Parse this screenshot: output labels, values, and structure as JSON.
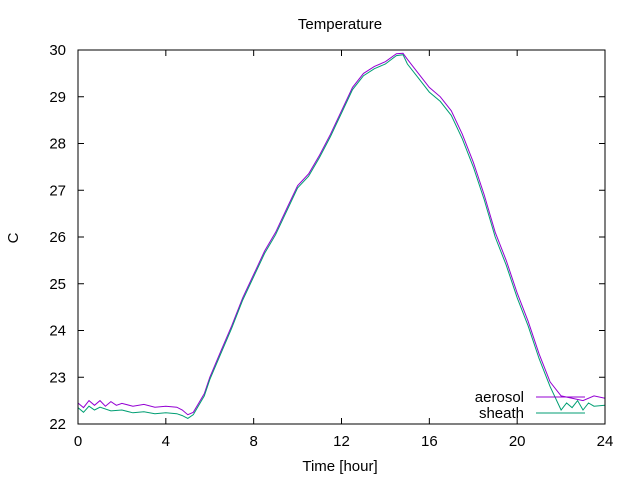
{
  "chart_data": {
    "type": "line",
    "title": "Temperature",
    "xlabel": "Time [hour]",
    "ylabel": "C",
    "xlim": [
      0,
      24
    ],
    "ylim": [
      22,
      30
    ],
    "xticks": [
      0,
      4,
      8,
      12,
      16,
      20,
      24
    ],
    "yticks": [
      22,
      23,
      24,
      25,
      26,
      27,
      28,
      29,
      30
    ],
    "grid": false,
    "legend_position": "bottom-right",
    "series": [
      {
        "name": "aerosol",
        "color": "#9400d3",
        "points": [
          [
            0,
            22.45
          ],
          [
            0.25,
            22.35
          ],
          [
            0.5,
            22.5
          ],
          [
            0.75,
            22.4
          ],
          [
            1,
            22.5
          ],
          [
            1.25,
            22.38
          ],
          [
            1.5,
            22.48
          ],
          [
            1.75,
            22.4
          ],
          [
            2,
            22.44
          ],
          [
            2.5,
            22.38
          ],
          [
            3,
            22.42
          ],
          [
            3.5,
            22.36
          ],
          [
            4,
            22.38
          ],
          [
            4.5,
            22.36
          ],
          [
            4.75,
            22.3
          ],
          [
            5,
            22.2
          ],
          [
            5.25,
            22.25
          ],
          [
            5.5,
            22.45
          ],
          [
            5.75,
            22.65
          ],
          [
            6,
            23.0
          ],
          [
            6.5,
            23.55
          ],
          [
            7,
            24.1
          ],
          [
            7.5,
            24.7
          ],
          [
            8,
            25.2
          ],
          [
            8.5,
            25.7
          ],
          [
            9,
            26.1
          ],
          [
            9.5,
            26.6
          ],
          [
            10,
            27.1
          ],
          [
            10.5,
            27.35
          ],
          [
            11,
            27.75
          ],
          [
            11.5,
            28.2
          ],
          [
            12,
            28.7
          ],
          [
            12.5,
            29.2
          ],
          [
            13,
            29.5
          ],
          [
            13.5,
            29.65
          ],
          [
            14,
            29.75
          ],
          [
            14.5,
            29.92
          ],
          [
            14.8,
            29.93
          ],
          [
            15,
            29.8
          ],
          [
            15.5,
            29.5
          ],
          [
            16,
            29.2
          ],
          [
            16.5,
            29.0
          ],
          [
            17,
            28.7
          ],
          [
            17.5,
            28.2
          ],
          [
            18,
            27.6
          ],
          [
            18.5,
            26.9
          ],
          [
            19,
            26.1
          ],
          [
            19.5,
            25.5
          ],
          [
            20,
            24.8
          ],
          [
            20.5,
            24.2
          ],
          [
            21,
            23.5
          ],
          [
            21.5,
            22.9
          ],
          [
            22,
            22.6
          ],
          [
            22.5,
            22.55
          ],
          [
            23,
            22.5
          ],
          [
            23.5,
            22.6
          ],
          [
            24,
            22.55
          ]
        ]
      },
      {
        "name": "sheath",
        "color": "#009e73",
        "points": [
          [
            0,
            22.35
          ],
          [
            0.25,
            22.25
          ],
          [
            0.5,
            22.38
          ],
          [
            0.75,
            22.3
          ],
          [
            1,
            22.36
          ],
          [
            1.5,
            22.28
          ],
          [
            2,
            22.3
          ],
          [
            2.5,
            22.24
          ],
          [
            3,
            22.26
          ],
          [
            3.5,
            22.22
          ],
          [
            4,
            22.24
          ],
          [
            4.5,
            22.22
          ],
          [
            4.75,
            22.18
          ],
          [
            5,
            22.12
          ],
          [
            5.25,
            22.2
          ],
          [
            5.5,
            22.4
          ],
          [
            5.75,
            22.6
          ],
          [
            6,
            22.95
          ],
          [
            6.5,
            23.5
          ],
          [
            7,
            24.05
          ],
          [
            7.5,
            24.65
          ],
          [
            8,
            25.15
          ],
          [
            8.5,
            25.65
          ],
          [
            9,
            26.05
          ],
          [
            9.5,
            26.55
          ],
          [
            10,
            27.05
          ],
          [
            10.5,
            27.3
          ],
          [
            11,
            27.7
          ],
          [
            11.5,
            28.15
          ],
          [
            12,
            28.65
          ],
          [
            12.5,
            29.15
          ],
          [
            13,
            29.45
          ],
          [
            13.5,
            29.6
          ],
          [
            14,
            29.7
          ],
          [
            14.5,
            29.88
          ],
          [
            14.8,
            29.9
          ],
          [
            15,
            29.7
          ],
          [
            15.5,
            29.4
          ],
          [
            16,
            29.1
          ],
          [
            16.5,
            28.9
          ],
          [
            17,
            28.6
          ],
          [
            17.5,
            28.1
          ],
          [
            18,
            27.5
          ],
          [
            18.5,
            26.8
          ],
          [
            19,
            26.0
          ],
          [
            19.5,
            25.4
          ],
          [
            20,
            24.7
          ],
          [
            20.5,
            24.1
          ],
          [
            21,
            23.4
          ],
          [
            21.5,
            22.8
          ],
          [
            22,
            22.3
          ],
          [
            22.25,
            22.45
          ],
          [
            22.5,
            22.35
          ],
          [
            22.75,
            22.5
          ],
          [
            23,
            22.3
          ],
          [
            23.25,
            22.45
          ],
          [
            23.5,
            22.38
          ],
          [
            24,
            22.4
          ]
        ]
      }
    ]
  }
}
